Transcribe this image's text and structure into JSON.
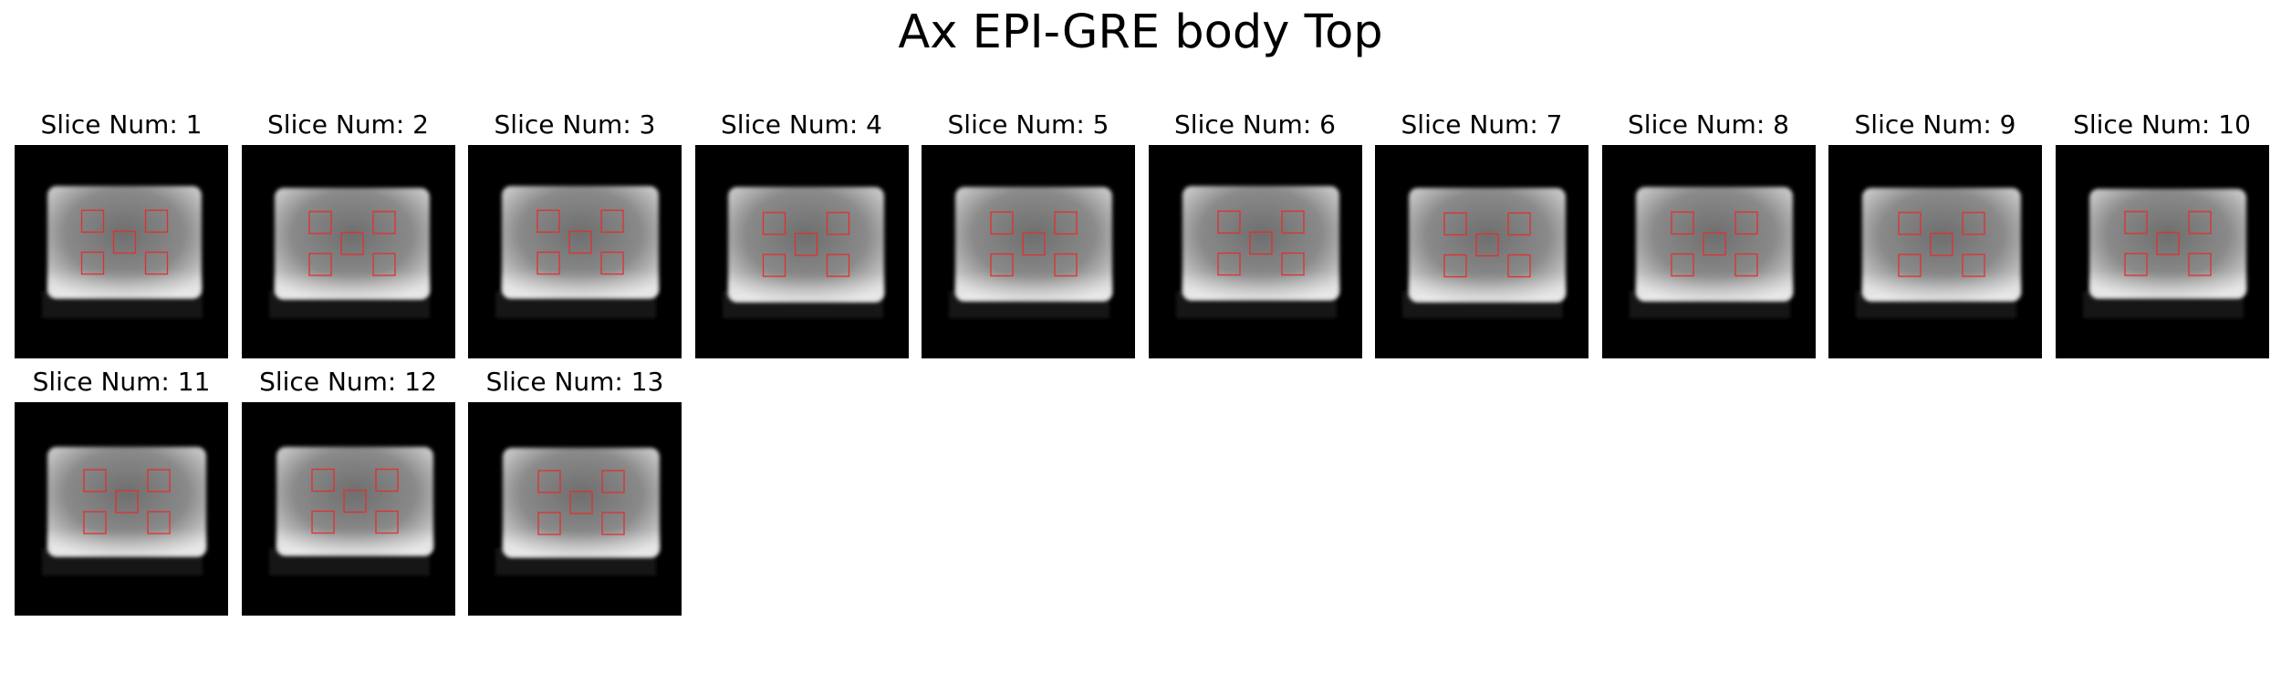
{
  "figure": {
    "title": "Ax EPI-GRE body Top"
  },
  "style": {
    "roi_color": "#e03030",
    "background": "#000000"
  },
  "panels": [
    {
      "label": "Slice Num: 1"
    },
    {
      "label": "Slice Num: 2"
    },
    {
      "label": "Slice Num: 3"
    },
    {
      "label": "Slice Num: 4"
    },
    {
      "label": "Slice Num: 5"
    },
    {
      "label": "Slice Num: 6"
    },
    {
      "label": "Slice Num: 7"
    },
    {
      "label": "Slice Num: 8"
    },
    {
      "label": "Slice Num: 9"
    },
    {
      "label": "Slice Num: 10"
    },
    {
      "label": "Slice Num: 11"
    },
    {
      "label": "Slice Num: 12"
    },
    {
      "label": "Slice Num: 13"
    }
  ]
}
